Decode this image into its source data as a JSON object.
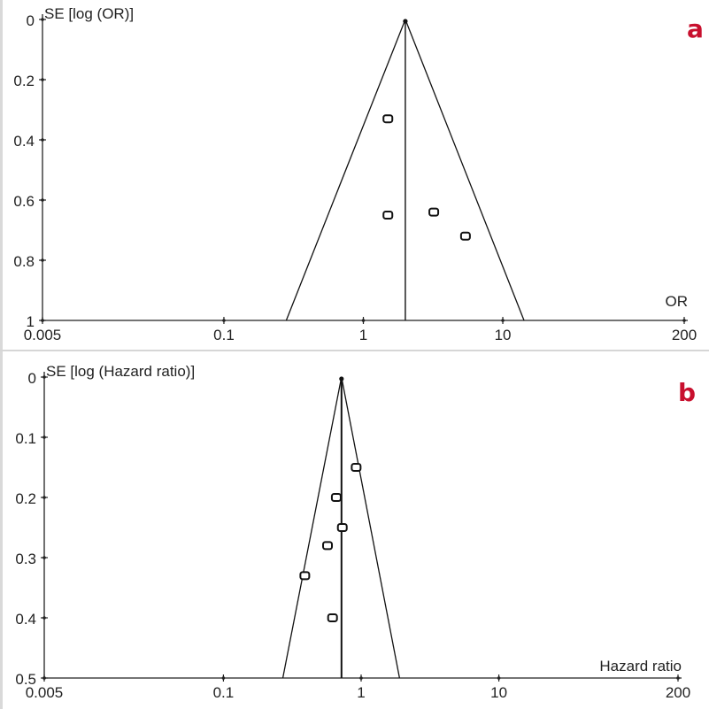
{
  "chart_data": [
    {
      "type": "scatter",
      "panel_label": "a",
      "ylabel": "SE [log (OR)]",
      "xlabel": "OR",
      "x_scale": "log",
      "x_ticks": [
        0.005,
        0.1,
        1,
        10,
        200
      ],
      "x_tick_labels": [
        "0.005",
        "0.1",
        "1",
        "10",
        "200"
      ],
      "y_ticks": [
        0,
        0.2,
        0.4,
        0.6,
        0.8,
        1
      ],
      "y_tick_labels": [
        "0",
        "0.2",
        "0.4",
        "0.6",
        "0.8",
        "1"
      ],
      "xlim": [
        0.005,
        200
      ],
      "ylim": [
        0,
        1
      ],
      "y_inverted": true,
      "pooled_estimate": 2.0,
      "funnel": {
        "apex_se": 0,
        "base_se": 1,
        "base_low": 0.28,
        "base_high": 14.2
      },
      "points": [
        {
          "x": 1.5,
          "y": 0.33
        },
        {
          "x": 1.5,
          "y": 0.65
        },
        {
          "x": 3.2,
          "y": 0.64
        },
        {
          "x": 5.4,
          "y": 0.72
        }
      ],
      "colors": {
        "marker": "#111111",
        "line": "#111111",
        "axis": "#222222",
        "panel_label": "#c8102e"
      }
    },
    {
      "type": "scatter",
      "panel_label": "b",
      "ylabel": "SE [log (Hazard ratio)]",
      "xlabel": "Hazard ratio",
      "x_scale": "log",
      "x_ticks": [
        0.005,
        0.1,
        1,
        10,
        200
      ],
      "x_tick_labels": [
        "0.005",
        "0.1",
        "1",
        "10",
        "200"
      ],
      "y_ticks": [
        0,
        0.1,
        0.2,
        0.3,
        0.4,
        0.5
      ],
      "y_tick_labels": [
        "0",
        "0.1",
        "0.2",
        "0.3",
        "0.4",
        "0.5"
      ],
      "xlim": [
        0.005,
        200
      ],
      "ylim": [
        0,
        0.5
      ],
      "y_inverted": true,
      "pooled_estimate": 0.72,
      "funnel": {
        "apex_se": 0,
        "base_se": 0.5,
        "base_low": 0.27,
        "base_high": 1.9
      },
      "points": [
        {
          "x": 0.92,
          "y": 0.15
        },
        {
          "x": 0.66,
          "y": 0.2
        },
        {
          "x": 0.73,
          "y": 0.25
        },
        {
          "x": 0.57,
          "y": 0.28
        },
        {
          "x": 0.39,
          "y": 0.33
        },
        {
          "x": 0.62,
          "y": 0.4
        }
      ],
      "colors": {
        "marker": "#111111",
        "line": "#111111",
        "axis": "#222222",
        "panel_label": "#c8102e"
      }
    }
  ]
}
